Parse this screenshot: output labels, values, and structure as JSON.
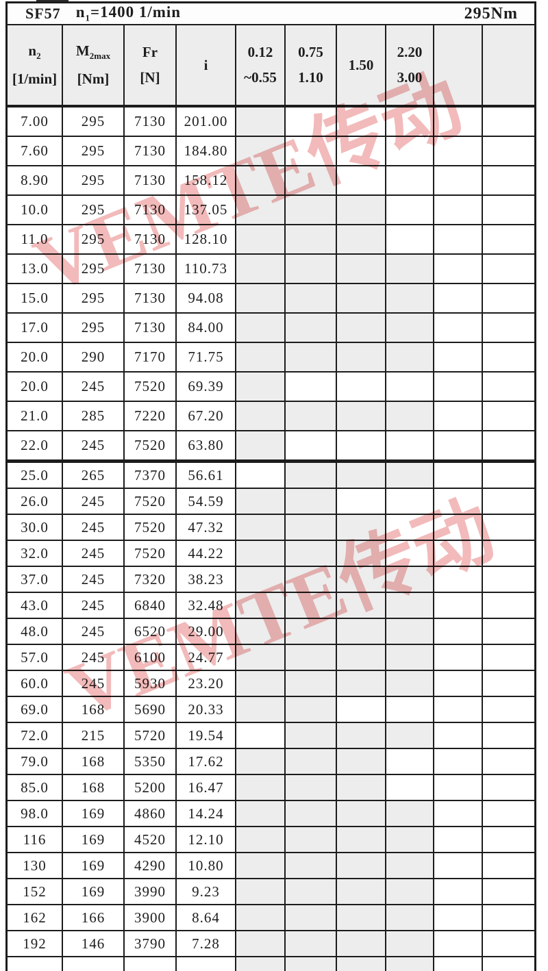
{
  "title": {
    "model": "SF57",
    "speed_main": "n",
    "speed_sub": "1",
    "speed_rest": "=1400 1/min",
    "torque": "295Nm"
  },
  "header": {
    "n2": {
      "sym": "n",
      "sub": "2",
      "unit": "[1/min]"
    },
    "m2max": {
      "sym": "M",
      "sub": "2max",
      "unit": "[Nm]"
    },
    "fr": {
      "sym": "Fr",
      "unit": "[N]"
    },
    "ratio": {
      "sym": "i"
    },
    "power_cols": [
      {
        "line1": "0.12",
        "line2": "~0.55"
      },
      {
        "line1": "0.75",
        "line2": "1.10"
      },
      {
        "line1": "1.50",
        "line2": ""
      },
      {
        "line1": "2.20",
        "line2": "3.00"
      },
      {
        "line1": "",
        "line2": ""
      },
      {
        "line1": "",
        "line2": ""
      }
    ]
  },
  "sections": [
    {
      "rows": [
        {
          "n2": "7.00",
          "m2max": "295",
          "fr": "7130",
          "i": "201.00",
          "power": [
            1,
            0,
            0,
            0,
            0,
            0
          ]
        },
        {
          "n2": "7.60",
          "m2max": "295",
          "fr": "7130",
          "i": "184.80",
          "power": [
            1,
            0,
            0,
            0,
            0,
            0
          ]
        },
        {
          "n2": "8.90",
          "m2max": "295",
          "fr": "7130",
          "i": "158.12",
          "power": [
            1,
            1,
            0,
            0,
            0,
            0
          ]
        },
        {
          "n2": "10.0",
          "m2max": "295",
          "fr": "7130",
          "i": "137.05",
          "power": [
            1,
            1,
            1,
            0,
            0,
            0
          ]
        },
        {
          "n2": "11.0",
          "m2max": "295",
          "fr": "7130",
          "i": "128.10",
          "power": [
            1,
            1,
            1,
            0,
            0,
            0
          ]
        },
        {
          "n2": "13.0",
          "m2max": "295",
          "fr": "7130",
          "i": "110.73",
          "power": [
            1,
            1,
            1,
            1,
            0,
            0
          ]
        },
        {
          "n2": "15.0",
          "m2max": "295",
          "fr": "7130",
          "i": "94.08",
          "power": [
            1,
            1,
            1,
            1,
            0,
            0
          ]
        },
        {
          "n2": "17.0",
          "m2max": "295",
          "fr": "7130",
          "i": "84.00",
          "power": [
            1,
            1,
            1,
            1,
            0,
            0
          ]
        },
        {
          "n2": "20.0",
          "m2max": "290",
          "fr": "7170",
          "i": "71.75",
          "power": [
            1,
            1,
            1,
            1,
            0,
            0
          ]
        },
        {
          "n2": "20.0",
          "m2max": "245",
          "fr": "7520",
          "i": "69.39",
          "power": [
            1,
            0,
            0,
            0,
            0,
            0
          ]
        },
        {
          "n2": "21.0",
          "m2max": "285",
          "fr": "7220",
          "i": "67.20",
          "power": [
            1,
            1,
            1,
            1,
            0,
            0
          ]
        },
        {
          "n2": "22.0",
          "m2max": "245",
          "fr": "7520",
          "i": "63.80",
          "power": [
            1,
            0,
            0,
            0,
            0,
            0
          ]
        }
      ]
    },
    {
      "rows": [
        {
          "n2": "25.0",
          "m2max": "265",
          "fr": "7370",
          "i": "56.61",
          "power": [
            0,
            1,
            1,
            1,
            0,
            0
          ]
        },
        {
          "n2": "26.0",
          "m2max": "245",
          "fr": "7520",
          "i": "54.59",
          "power": [
            1,
            1,
            0,
            0,
            0,
            0
          ]
        },
        {
          "n2": "30.0",
          "m2max": "245",
          "fr": "7520",
          "i": "47.32",
          "power": [
            1,
            1,
            1,
            0,
            0,
            0
          ]
        },
        {
          "n2": "32.0",
          "m2max": "245",
          "fr": "7520",
          "i": "44.22",
          "power": [
            1,
            1,
            1,
            0,
            0,
            0
          ]
        },
        {
          "n2": "37.0",
          "m2max": "245",
          "fr": "7320",
          "i": "38.23",
          "power": [
            1,
            1,
            1,
            1,
            0,
            0
          ]
        },
        {
          "n2": "43.0",
          "m2max": "245",
          "fr": "6840",
          "i": "32.48",
          "power": [
            1,
            1,
            1,
            1,
            0,
            0
          ]
        },
        {
          "n2": "48.0",
          "m2max": "245",
          "fr": "6520",
          "i": "29.00",
          "power": [
            1,
            1,
            1,
            1,
            0,
            0
          ]
        },
        {
          "n2": "57.0",
          "m2max": "245",
          "fr": "6100",
          "i": "24.77",
          "power": [
            1,
            1,
            1,
            1,
            0,
            0
          ]
        },
        {
          "n2": "60.0",
          "m2max": "245",
          "fr": "5930",
          "i": "23.20",
          "power": [
            1,
            1,
            1,
            1,
            0,
            0
          ]
        },
        {
          "n2": "69.0",
          "m2max": "168",
          "fr": "5690",
          "i": "20.33",
          "power": [
            1,
            1,
            0,
            0,
            0,
            0
          ]
        },
        {
          "n2": "72.0",
          "m2max": "215",
          "fr": "5720",
          "i": "19.54",
          "power": [
            0,
            1,
            1,
            1,
            0,
            0
          ]
        },
        {
          "n2": "79.0",
          "m2max": "168",
          "fr": "5350",
          "i": "17.62",
          "power": [
            1,
            1,
            1,
            0,
            0,
            0
          ]
        },
        {
          "n2": "85.0",
          "m2max": "168",
          "fr": "5200",
          "i": "16.47",
          "power": [
            1,
            1,
            1,
            0,
            0,
            0
          ]
        },
        {
          "n2": "98.0",
          "m2max": "169",
          "fr": "4860",
          "i": "14.24",
          "power": [
            1,
            1,
            1,
            1,
            0,
            0
          ]
        },
        {
          "n2": "116",
          "m2max": "169",
          "fr": "4520",
          "i": "12.10",
          "power": [
            1,
            1,
            1,
            1,
            0,
            0
          ]
        },
        {
          "n2": "130",
          "m2max": "169",
          "fr": "4290",
          "i": "10.80",
          "power": [
            1,
            1,
            1,
            1,
            0,
            0
          ]
        },
        {
          "n2": "152",
          "m2max": "169",
          "fr": "3990",
          "i": "9.23",
          "power": [
            1,
            1,
            1,
            1,
            0,
            0
          ]
        },
        {
          "n2": "162",
          "m2max": "166",
          "fr": "3900",
          "i": "8.64",
          "power": [
            1,
            1,
            1,
            1,
            0,
            0
          ]
        },
        {
          "n2": "192",
          "m2max": "146",
          "fr": "3790",
          "i": "7.28",
          "power": [
            1,
            1,
            1,
            1,
            0,
            0
          ]
        }
      ]
    }
  ],
  "partial_row": {
    "n2": "",
    "m2max": "",
    "fr": "",
    "i": "",
    "power": [
      1,
      1,
      1,
      1,
      0,
      0
    ]
  },
  "watermark": {
    "text": "VEMTE传动",
    "color": "#e78282"
  },
  "colors": {
    "cell_gray": "#ededed",
    "header_bg": "#ededed",
    "border": "#1c1c1c"
  }
}
